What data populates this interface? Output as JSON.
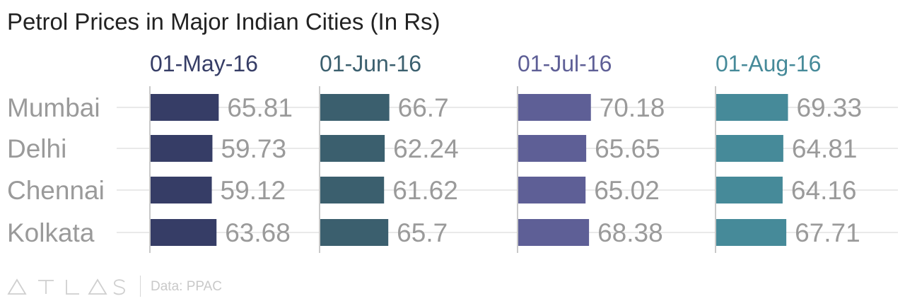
{
  "chart_data": {
    "type": "bar",
    "title": "Petrol Prices in Major Indian Cities (In Rs)",
    "categories": [
      "Mumbai",
      "Delhi",
      "Chennai",
      "Kolkata"
    ],
    "series": [
      {
        "name": "01-May-16",
        "values": [
          65.81,
          59.73,
          59.12,
          63.68
        ],
        "color": "#363d66"
      },
      {
        "name": "01-Jun-16",
        "values": [
          66.7,
          62.24,
          61.62,
          65.7
        ],
        "color": "#3b5f6e"
      },
      {
        "name": "01-Jul-16",
        "values": [
          70.18,
          65.65,
          65.02,
          68.38
        ],
        "color": "#5e5f96"
      },
      {
        "name": "01-Aug-16",
        "values": [
          69.33,
          64.81,
          64.16,
          67.71
        ],
        "color": "#468a99"
      }
    ],
    "value_labels": [
      [
        "65.81",
        "59.73",
        "59.12",
        "63.68"
      ],
      [
        "66.7",
        "62.24",
        "61.62",
        "65.7"
      ],
      [
        "70.18",
        "65.65",
        "65.02",
        "68.38"
      ],
      [
        "69.33",
        "64.81",
        "64.16",
        "67.71"
      ]
    ],
    "xlim": [
      0,
      100
    ],
    "grid": true,
    "layout": "small-multiples"
  },
  "footer": {
    "logo_text": "ATLAS",
    "source": "Data: PPAC"
  },
  "colors": {
    "label": "#9a9a9a",
    "grid": "#e9e9e9",
    "axis": "#c9c9c9"
  }
}
